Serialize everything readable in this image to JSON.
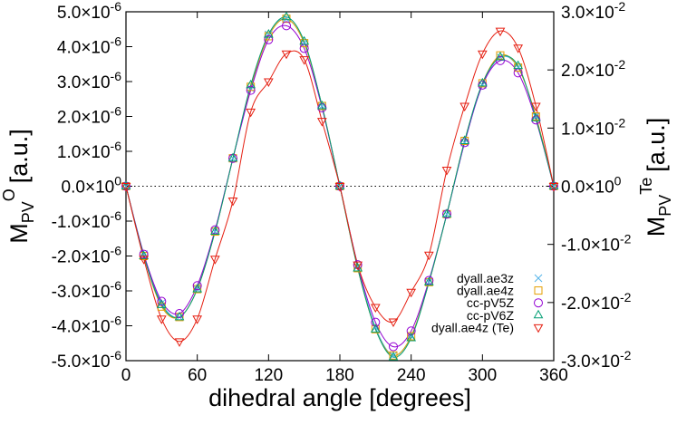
{
  "chart_data": {
    "type": "line",
    "xlabel": "dihedral angle [degrees]",
    "ylabel_left": {
      "main": "M",
      "sub": "PV",
      "sup": "O",
      "unit": "[a.u.]"
    },
    "ylabel_right": {
      "main": "M",
      "sub": "PV",
      "sup": "Te",
      "unit": "[a.u.]"
    },
    "xlim": [
      0,
      360
    ],
    "ylim_left": [
      -5e-06,
      5e-06
    ],
    "ylim_right": [
      -0.03,
      0.03
    ],
    "x_ticks": [
      0,
      60,
      120,
      180,
      240,
      300,
      360
    ],
    "x_tick_labels": [
      "0",
      "60",
      "120",
      "180",
      "240",
      "300",
      "360"
    ],
    "y_left_ticks": [
      {
        "value": 5e-06,
        "mant": "5.0",
        "exp": "-6"
      },
      {
        "value": 4e-06,
        "mant": "4.0",
        "exp": "-6"
      },
      {
        "value": 3e-06,
        "mant": "3.0",
        "exp": "-6"
      },
      {
        "value": 2e-06,
        "mant": "2.0",
        "exp": "-6"
      },
      {
        "value": 1e-06,
        "mant": "1.0",
        "exp": "-6"
      },
      {
        "value": 0,
        "mant": "0.0",
        "exp": "0"
      },
      {
        "value": -1e-06,
        "mant": "-1.0",
        "exp": "-6"
      },
      {
        "value": -2e-06,
        "mant": "-2.0",
        "exp": "-6"
      },
      {
        "value": -3e-06,
        "mant": "-3.0",
        "exp": "-6"
      },
      {
        "value": -4e-06,
        "mant": "-4.0",
        "exp": "-6"
      },
      {
        "value": -5e-06,
        "mant": "-5.0",
        "exp": "-6"
      }
    ],
    "y_right_ticks": [
      {
        "value": 0.03,
        "mant": "3.0",
        "exp": "-2"
      },
      {
        "value": 0.02,
        "mant": "2.0",
        "exp": "-2"
      },
      {
        "value": 0.01,
        "mant": "1.0",
        "exp": "-2"
      },
      {
        "value": 0,
        "mant": "0.0",
        "exp": "0"
      },
      {
        "value": -0.01,
        "mant": "-1.0",
        "exp": "-2"
      },
      {
        "value": -0.02,
        "mant": "-2.0",
        "exp": "-2"
      },
      {
        "value": -0.03,
        "mant": "-3.0",
        "exp": "-2"
      }
    ],
    "times_symbol": "×10",
    "zero_line": "dotted",
    "grid": false,
    "legend_position": "bottom-right",
    "series": [
      {
        "name": "dyall.ae3z",
        "axis": "left",
        "marker": "x",
        "color": "#56b4e9",
        "x": [
          0,
          15,
          30,
          45,
          60,
          75,
          90,
          105,
          120,
          135,
          150,
          165,
          180,
          195,
          210,
          225,
          240,
          255,
          270,
          285,
          300,
          315,
          330,
          345,
          360
        ],
        "y": [
          0,
          -1.95e-06,
          -3.35e-06,
          -3.75e-06,
          -2.95e-06,
          -1.3e-06,
          8e-07,
          2.8e-06,
          4.35e-06,
          4.8e-06,
          4.1e-06,
          2.3e-06,
          0,
          -2.3e-06,
          -4.05e-06,
          -4.85e-06,
          -4.3e-06,
          -2.75e-06,
          -8e-07,
          1.25e-06,
          2.9e-06,
          3.7e-06,
          3.4e-06,
          2e-06,
          0
        ]
      },
      {
        "name": "dyall.ae4z",
        "axis": "left",
        "marker": "square",
        "color": "#e69f00",
        "x": [
          0,
          15,
          30,
          45,
          60,
          75,
          90,
          105,
          120,
          135,
          150,
          165,
          180,
          195,
          210,
          225,
          240,
          255,
          270,
          285,
          300,
          315,
          330,
          345,
          360
        ],
        "y": [
          0,
          -2e-06,
          -3.45e-06,
          -3.75e-06,
          -2.95e-06,
          -1.3e-06,
          8e-07,
          2.85e-06,
          4.3e-06,
          4.8e-06,
          4.1e-06,
          2.3e-06,
          0,
          -2.35e-06,
          -4.1e-06,
          -4.85e-06,
          -4.3e-06,
          -2.75e-06,
          -8e-07,
          1.3e-06,
          2.95e-06,
          3.75e-06,
          3.4e-06,
          2e-06,
          0
        ]
      },
      {
        "name": "cc-pV5Z",
        "axis": "left",
        "marker": "circle",
        "color": "#9400d3",
        "x": [
          0,
          15,
          30,
          45,
          60,
          75,
          90,
          105,
          120,
          135,
          150,
          165,
          180,
          195,
          210,
          225,
          240,
          255,
          270,
          285,
          300,
          315,
          330,
          345,
          360
        ],
        "y": [
          0,
          -1.95e-06,
          -3.3e-06,
          -3.65e-06,
          -2.85e-06,
          -1.25e-06,
          8e-07,
          2.75e-06,
          4.2e-06,
          4.6e-06,
          3.95e-06,
          2.25e-06,
          0,
          -2.25e-06,
          -3.9e-06,
          -4.6e-06,
          -4.15e-06,
          -2.7e-06,
          -8e-07,
          1.25e-06,
          2.9e-06,
          3.6e-06,
          3.25e-06,
          1.9e-06,
          0
        ]
      },
      {
        "name": "cc-pV6Z",
        "axis": "left",
        "marker": "triangle",
        "color": "#009e73",
        "x": [
          0,
          15,
          30,
          45,
          60,
          75,
          90,
          105,
          120,
          135,
          150,
          165,
          180,
          195,
          210,
          225,
          240,
          255,
          270,
          285,
          300,
          315,
          330,
          345,
          360
        ],
        "y": [
          0,
          -2e-06,
          -3.4e-06,
          -3.75e-06,
          -2.95e-06,
          -1.3e-06,
          8e-07,
          2.9e-06,
          4.35e-06,
          4.85e-06,
          4.15e-06,
          2.3e-06,
          0,
          -2.35e-06,
          -4.1e-06,
          -4.9e-06,
          -4.35e-06,
          -2.75e-06,
          -8e-07,
          1.3e-06,
          2.95e-06,
          3.7e-06,
          3.45e-06,
          1.95e-06,
          0
        ]
      },
      {
        "name": "dyall.ae4z (Te)",
        "axis": "right",
        "marker": "triangle-down",
        "color": "#e51e10",
        "x": [
          0,
          15,
          30,
          45,
          60,
          75,
          90,
          105,
          120,
          135,
          150,
          165,
          180,
          195,
          210,
          225,
          240,
          255,
          270,
          285,
          300,
          315,
          330,
          345,
          360
        ],
        "y": [
          0,
          -0.0125,
          -0.0228,
          -0.0267,
          -0.0228,
          -0.0125,
          -0.0025,
          0.0128,
          0.018,
          0.0228,
          0.0218,
          0.0112,
          0,
          -0.0135,
          -0.0208,
          -0.0233,
          -0.0182,
          -0.0118,
          0.0028,
          0.0138,
          0.0228,
          0.0267,
          0.0238,
          0.0138,
          0
        ]
      }
    ]
  }
}
